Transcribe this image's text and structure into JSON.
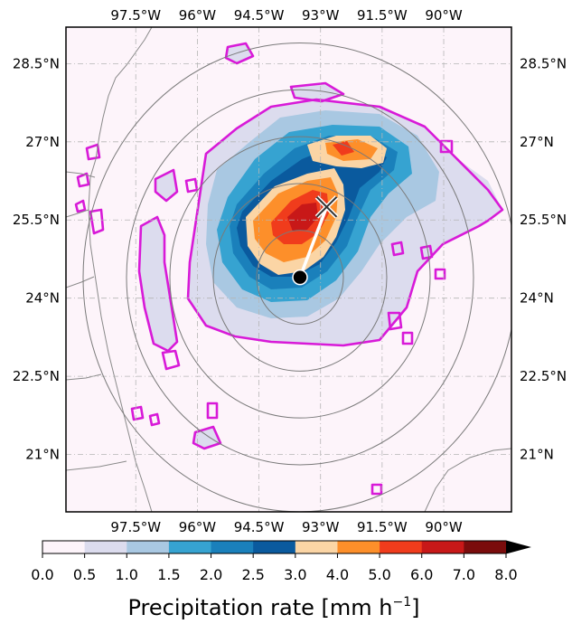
{
  "map": {
    "lon_ticks": [
      "97.5°W",
      "96°W",
      "94.5°W",
      "93°W",
      "91.5°W",
      "90°W"
    ],
    "lon_values": [
      -97.5,
      -96,
      -94.5,
      -93,
      -91.5,
      -90
    ],
    "lat_ticks": [
      "28.5°N",
      "27°N",
      "25.5°N",
      "24°N",
      "22.5°N",
      "21°N"
    ],
    "lat_values": [
      28.5,
      27,
      25.5,
      24,
      22.5,
      21
    ],
    "lon_range": [
      -99.2,
      -88.35
    ],
    "lat_range": [
      19.9,
      29.2
    ],
    "gridlines": true,
    "storm_center": {
      "lon": -93.5,
      "lat": 24.4
    },
    "shear_end": {
      "lon": -92.85,
      "lat": 25.75
    },
    "range_rings": {
      "center_lon": -93.5,
      "center_lat": 24.4,
      "count": 5
    },
    "colors": {
      "precip_contour": "#d81ad8",
      "vector": "#ffffff",
      "center_marker": "#000000",
      "ring": "#7a7a7a",
      "land": "#8a8a8a"
    }
  },
  "colorbar": {
    "label": "Precipitation rate [mm h",
    "label_exponent": "−1",
    "label_close": "]",
    "tick_labels": [
      "0.0",
      "0.5",
      "1.0",
      "1.5",
      "2.0",
      "2.5",
      "3.0",
      "4.0",
      "5.0",
      "6.0",
      "7.0",
      "8.0"
    ],
    "extend": "max",
    "colors": [
      "#fdf4fa",
      "#dcdcee",
      "#a9c8e2",
      "#36a3d1",
      "#1a80bb",
      "#0a5a9e",
      "#fbd5a5",
      "#fd8f2a",
      "#f03c1c",
      "#c81818",
      "#7a0c0c",
      "#000000"
    ]
  }
}
